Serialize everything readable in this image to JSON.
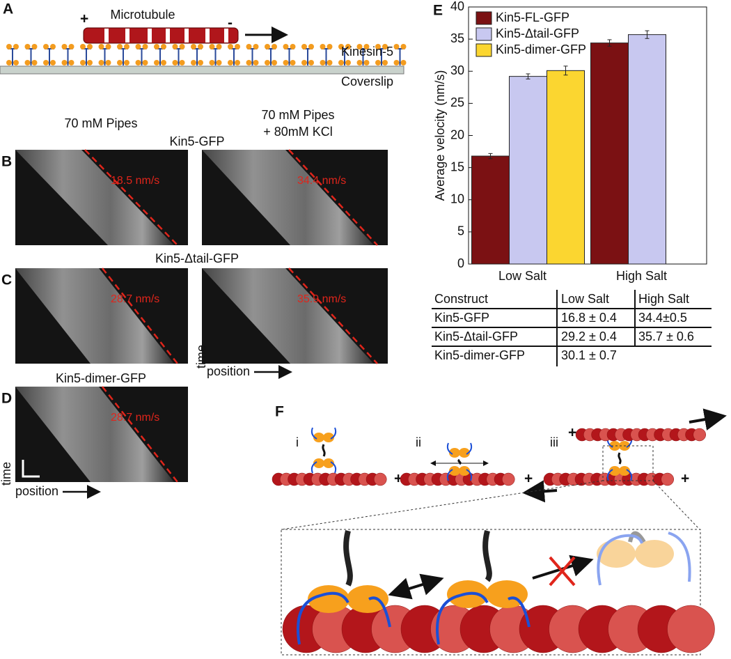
{
  "panel_a": {
    "label": "A",
    "filament": "Microtubule",
    "plus": "+",
    "minus": "-",
    "motor": "Kinesin-5",
    "surface": "Coverslip"
  },
  "kymographs": {
    "columns": [
      [
        "70 mM Pipes"
      ],
      [
        "70 mM Pipes",
        "+ 80mM KCl"
      ]
    ],
    "rows": [
      {
        "label": "B",
        "title": "Kin5-GFP",
        "speeds": [
          "18.5 nm/s",
          "34.4 nm/s"
        ]
      },
      {
        "label": "C",
        "title": "Kin5-Δtail-GFP",
        "speeds": [
          "28.7 nm/s",
          "35.9 nm/s"
        ]
      },
      {
        "label": "D",
        "title": "Kin5-dimer-GFP",
        "speeds": [
          "28.7 nm/s"
        ]
      }
    ],
    "y_axis": "time",
    "x_axis": "position"
  },
  "chart_data": {
    "type": "bar",
    "panel": "E",
    "ylabel": "Average velocity (nm/s)",
    "categories": [
      "Low Salt",
      "High Salt"
    ],
    "series": [
      {
        "name": "Kin5-FL-GFP",
        "color": "#7b1113",
        "values": [
          16.8,
          34.4
        ],
        "errors": [
          0.4,
          0.5
        ]
      },
      {
        "name": "Kin5-Δtail-GFP",
        "color": "#c8c8f0",
        "values": [
          29.2,
          35.7
        ],
        "errors": [
          0.4,
          0.6
        ]
      },
      {
        "name": "Kin5-dimer-GFP",
        "color": "#fbd630",
        "values": [
          30.1,
          null
        ],
        "errors": [
          0.7,
          null
        ]
      }
    ],
    "ylim": [
      0,
      40
    ],
    "yticks": [
      0,
      5,
      10,
      15,
      20,
      25,
      30,
      35,
      40
    ],
    "legend": "upper-left"
  },
  "table": {
    "header": [
      "Construct",
      "Low Salt",
      "High Salt"
    ],
    "rows": [
      [
        "Kin5-GFP",
        "16.8 ± 0.4",
        "34.4±0.5"
      ],
      [
        "Kin5-Δtail-GFP",
        "29.2 ± 0.4",
        "35.7 ± 0.6"
      ],
      [
        "Kin5-dimer-GFP",
        "30.1 ± 0.7",
        ""
      ]
    ]
  },
  "panel_f": {
    "label": "F",
    "steps": [
      "i",
      "ii",
      "iii"
    ],
    "plus": "+"
  }
}
